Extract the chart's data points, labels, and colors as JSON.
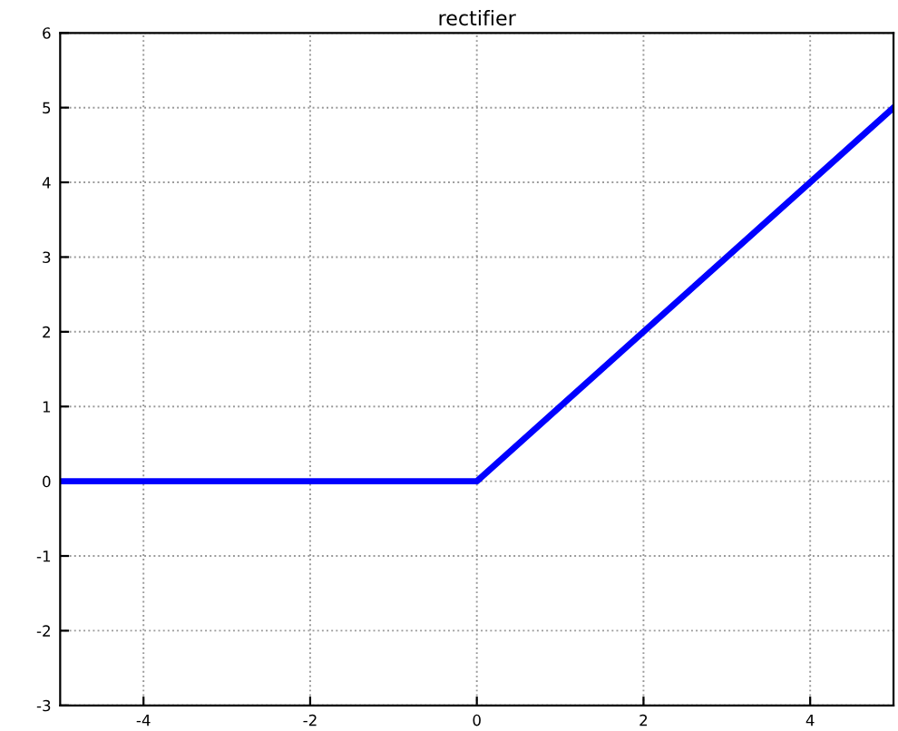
{
  "chart_data": {
    "type": "line",
    "title": "rectifier",
    "x": [
      -5,
      0,
      5
    ],
    "series": [
      {
        "color": "#0000ff",
        "values": [
          0,
          0,
          5
        ]
      }
    ],
    "xlim": [
      -5,
      5
    ],
    "xticks": [
      -4,
      -2,
      0,
      2,
      4
    ],
    "ylim": [
      -3,
      6
    ],
    "yticks": [
      -3,
      -2,
      -1,
      0,
      1,
      2,
      3,
      4,
      5,
      6
    ],
    "grid": true,
    "line_style": "solid"
  }
}
